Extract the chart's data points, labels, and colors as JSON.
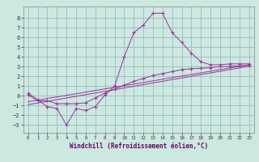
{
  "bg_color": "#cce8e0",
  "line_color": "#993399",
  "grid_color": "#99bbbb",
  "xlabel": "Windchill (Refroidissement éolien,°C)",
  "xlim": [
    -0.5,
    23.5
  ],
  "ylim": [
    -3.8,
    9.2
  ],
  "yticks": [
    -3,
    -2,
    -1,
    0,
    1,
    2,
    3,
    4,
    5,
    6,
    7,
    8
  ],
  "xticks": [
    0,
    1,
    2,
    3,
    4,
    5,
    6,
    7,
    8,
    9,
    10,
    11,
    12,
    13,
    14,
    15,
    16,
    17,
    18,
    19,
    20,
    21,
    22,
    23
  ],
  "series1_x": [
    0,
    1,
    2,
    3,
    4,
    5,
    6,
    7,
    8,
    9,
    10,
    11,
    12,
    13,
    14,
    15,
    16,
    17,
    18,
    19,
    20,
    21,
    22,
    23
  ],
  "series1_y": [
    0.3,
    -0.4,
    -1.1,
    -1.3,
    -3.0,
    -1.3,
    -1.5,
    -1.1,
    0.1,
    1.0,
    4.0,
    6.5,
    7.3,
    8.5,
    8.5,
    6.5,
    5.5,
    4.4,
    3.5,
    3.2,
    3.2,
    3.3,
    3.3,
    3.3
  ],
  "series2_x": [
    0,
    1,
    2,
    3,
    4,
    5,
    6,
    7,
    8,
    9,
    10,
    11,
    12,
    13,
    14,
    15,
    16,
    17,
    18,
    19,
    20,
    21,
    22,
    23
  ],
  "series2_y": [
    0.1,
    -0.5,
    -0.5,
    -0.8,
    -0.8,
    -0.8,
    -0.7,
    -0.2,
    0.3,
    0.7,
    1.1,
    1.5,
    1.8,
    2.1,
    2.3,
    2.5,
    2.7,
    2.8,
    2.85,
    2.9,
    3.0,
    3.05,
    3.1,
    3.15
  ],
  "series3_x": [
    0,
    23
  ],
  "series3_y": [
    -0.9,
    3.05
  ],
  "series4_x": [
    0,
    23
  ],
  "series4_y": [
    -0.6,
    3.2
  ]
}
